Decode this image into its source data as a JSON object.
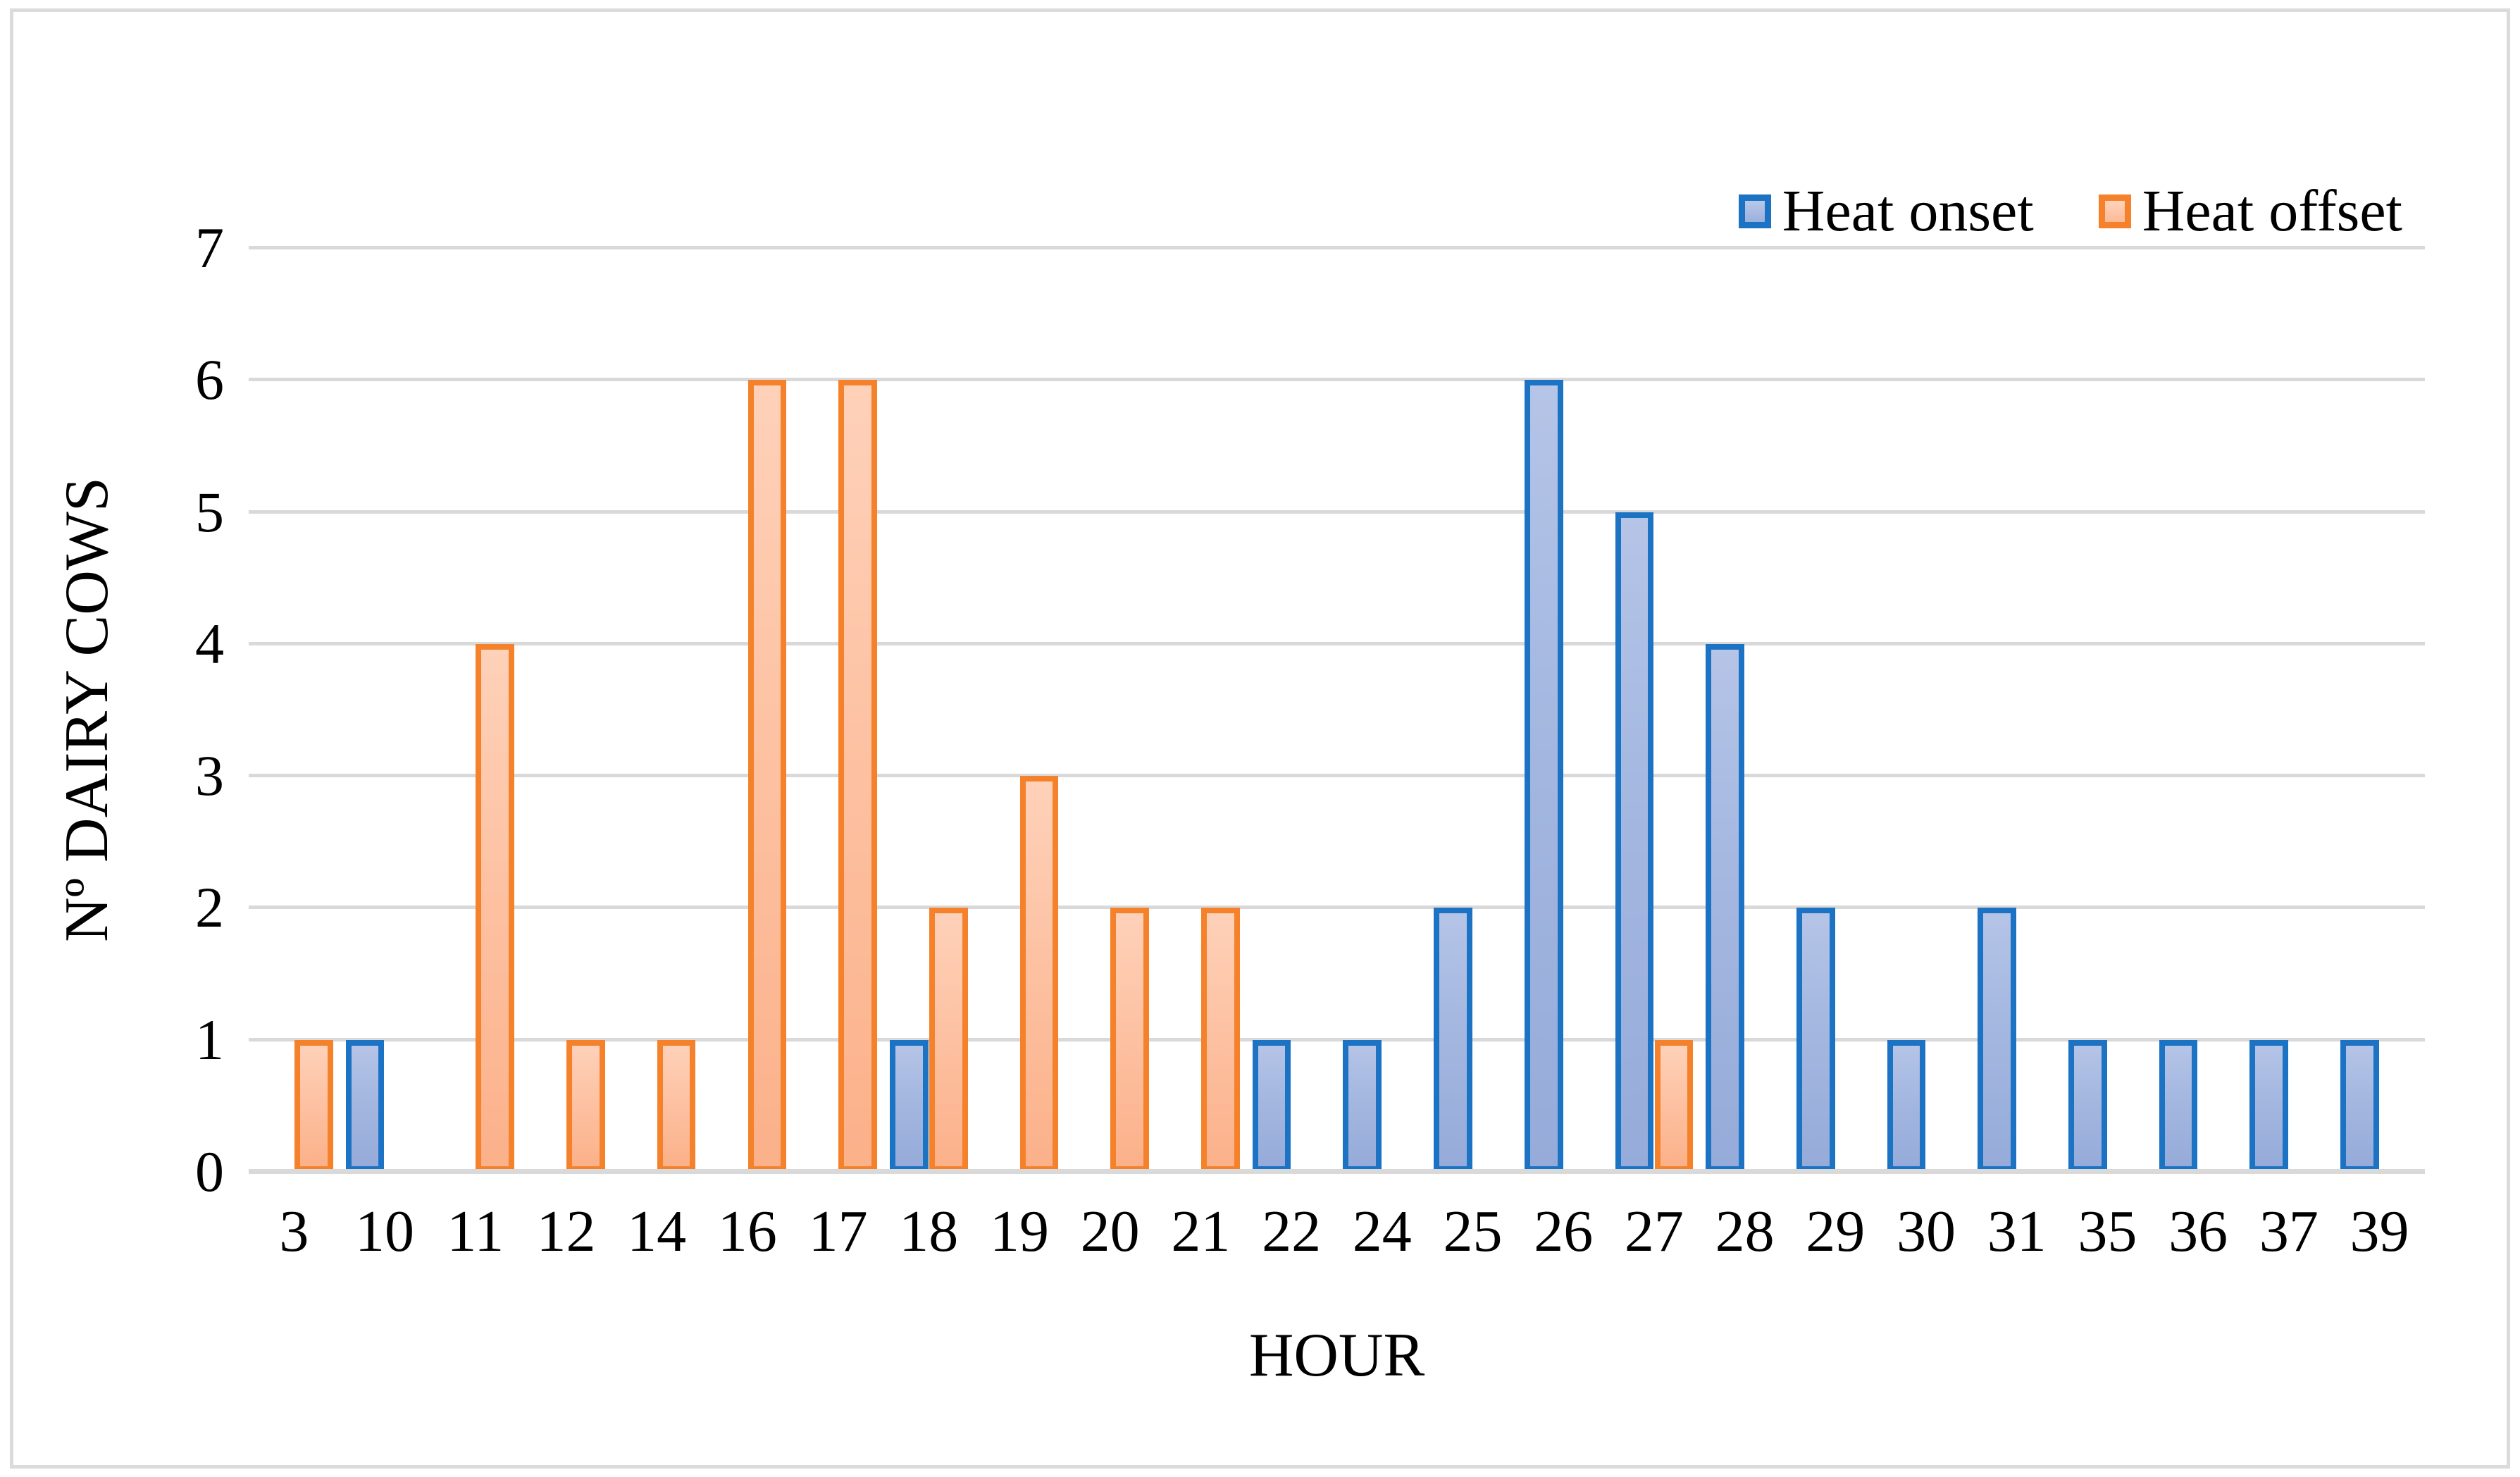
{
  "figure": {
    "y_axis_title": "Nº DAIRY COWS",
    "x_axis_title": "HOUR",
    "legend": {
      "onset_label": "Heat onset",
      "offset_label": "Heat offset"
    }
  },
  "colors": {
    "onset_border": "#1c73c4",
    "onset_fill": "#a3b7e0",
    "offset_border": "#f5822a",
    "offset_fill": "#fdc2a3",
    "gridline": "#d9d9d9",
    "frame_border": "#dbdbdb",
    "text": "#000000"
  },
  "chart_data": {
    "type": "bar",
    "title": "",
    "xlabel": "HOUR",
    "ylabel": "Nº DAIRY COWS",
    "ylim": [
      0,
      7
    ],
    "y_ticks": [
      0,
      1,
      2,
      3,
      4,
      5,
      6,
      7
    ],
    "grid": true,
    "legend_position": "top-right",
    "categories": [
      3,
      10,
      11,
      12,
      14,
      16,
      17,
      18,
      19,
      20,
      21,
      22,
      24,
      25,
      26,
      27,
      28,
      29,
      30,
      31,
      35,
      36,
      37,
      39
    ],
    "series": [
      {
        "name": "Heat onset",
        "color": "#1c73c4",
        "values": [
          0,
          1,
          0,
          0,
          0,
          0,
          0,
          1,
          0,
          0,
          0,
          1,
          1,
          2,
          6,
          5,
          4,
          2,
          1,
          2,
          1,
          1,
          1,
          1
        ]
      },
      {
        "name": "Heat offset",
        "color": "#f5822a",
        "values": [
          1,
          0,
          4,
          1,
          1,
          6,
          6,
          2,
          3,
          2,
          2,
          0,
          0,
          0,
          0,
          1,
          0,
          0,
          0,
          0,
          0,
          0,
          0,
          0
        ]
      }
    ]
  }
}
